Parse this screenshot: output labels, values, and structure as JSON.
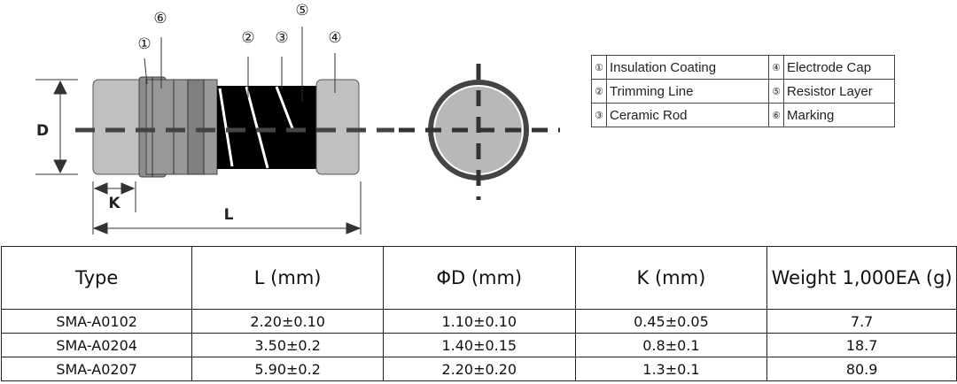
{
  "diagram": {
    "callouts": [
      "①",
      "②",
      "③",
      "④",
      "⑤",
      "⑥"
    ],
    "dimension_labels": {
      "diameter": "D",
      "length": "L",
      "cap_length": "K"
    }
  },
  "legend": [
    {
      "num": "①",
      "label": "Insulation Coating",
      "num2": "④",
      "label2": "Electrode Cap"
    },
    {
      "num": "②",
      "label": "Trimming Line",
      "num2": "⑤",
      "label2": "Resistor Layer"
    },
    {
      "num": "③",
      "label": "Ceramic Rod",
      "num2": "⑥",
      "label2": "Marking"
    }
  ],
  "spec_table": {
    "headers": [
      "Type",
      "L (mm)",
      "ΦD (mm)",
      "K (mm)",
      "Weight 1,000EA (g)"
    ],
    "rows": [
      [
        "SMA-A0102",
        "2.20±0.10",
        "1.10±0.10",
        "0.45±0.05",
        "7.7"
      ],
      [
        "SMA-A0204",
        "3.50±0.2",
        "1.40±0.15",
        "0.8±0.1",
        "18.7"
      ],
      [
        "SMA-A0207",
        "5.90±0.2",
        "2.20±0.20",
        "1.3±0.1",
        "80.9"
      ]
    ]
  }
}
